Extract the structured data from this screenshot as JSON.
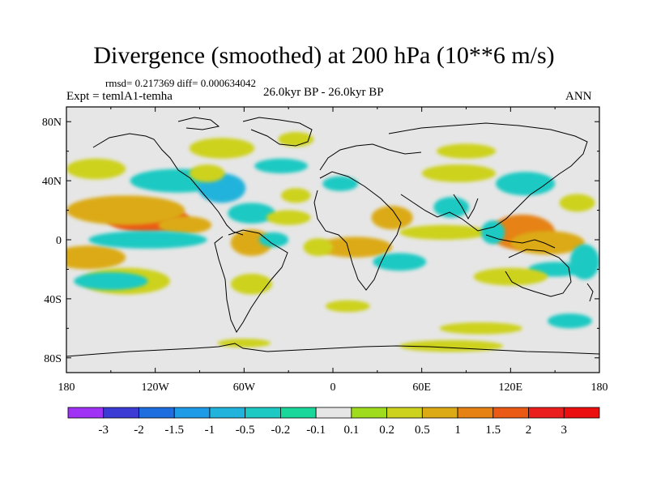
{
  "title": "Divergence (smoothed) at 200 hPa (10**6 m/s)",
  "stats_text": "rmsd= 0.217369 diff= 0.000634042",
  "left_label": "Expt = temlA1-temha",
  "center_label": "26.0kyr BP - 26.0kyr BP",
  "right_label": "ANN",
  "chart_data": {
    "type": "heatmap",
    "title": "Divergence (smoothed) at 200 hPa (10**6 m/s)",
    "xlabel": "",
    "ylabel": "",
    "xlim": [
      -180,
      180
    ],
    "ylim": [
      -90,
      90
    ],
    "x_ticks": [
      {
        "value": -180,
        "label": "180"
      },
      {
        "value": -120,
        "label": "120W"
      },
      {
        "value": -60,
        "label": "60W"
      },
      {
        "value": 0,
        "label": "0"
      },
      {
        "value": 60,
        "label": "60E"
      },
      {
        "value": 120,
        "label": "120E"
      },
      {
        "value": 180,
        "label": "180"
      }
    ],
    "y_ticks": [
      {
        "value": 80,
        "label": "80N"
      },
      {
        "value": 40,
        "label": "40N"
      },
      {
        "value": 0,
        "label": "0"
      },
      {
        "value": -40,
        "label": "40S"
      },
      {
        "value": -80,
        "label": "80S"
      }
    ],
    "colorbar": {
      "levels": [
        "-3",
        "-2",
        "-1.5",
        "-1",
        "-0.5",
        "-0.2",
        "-0.1",
        "0.1",
        "0.2",
        "0.5",
        "1",
        "1.5",
        "2",
        "3"
      ],
      "colors": [
        "#9f32f5",
        "#3c3cd5",
        "#1e6ee0",
        "#1e9be6",
        "#21b3dc",
        "#1ec9c3",
        "#19d79b",
        "#e6e6e6",
        "#a0dc1e",
        "#cdd21e",
        "#dcaa14",
        "#e68214",
        "#eb5a14",
        "#eb1e1e",
        "#eb0f0f"
      ]
    },
    "features": [
      {
        "lon": -125,
        "lat": 14,
        "rlon": 28,
        "rlat": 9,
        "value": 1.6
      },
      {
        "lon": -140,
        "lat": 20,
        "rlon": 40,
        "rlat": 10,
        "value": 0.6
      },
      {
        "lon": -100,
        "lat": 10,
        "rlon": 18,
        "rlat": 6,
        "value": 0.6
      },
      {
        "lon": -165,
        "lat": -12,
        "rlon": 25,
        "rlat": 8,
        "value": 0.7
      },
      {
        "lon": -140,
        "lat": -28,
        "rlon": 30,
        "rlat": 9,
        "value": 0.4
      },
      {
        "lon": -105,
        "lat": 40,
        "rlon": 32,
        "rlat": 8,
        "value": -0.5
      },
      {
        "lon": -75,
        "lat": 35,
        "rlon": 16,
        "rlat": 10,
        "value": -0.6
      },
      {
        "lon": -55,
        "lat": 18,
        "rlon": 16,
        "rlat": 7,
        "value": -0.4
      },
      {
        "lon": -125,
        "lat": 0,
        "rlon": 40,
        "rlat": 6,
        "value": -0.4
      },
      {
        "lon": -150,
        "lat": -28,
        "rlon": 25,
        "rlat": 6,
        "value": -0.3
      },
      {
        "lon": -160,
        "lat": 48,
        "rlon": 20,
        "rlat": 7,
        "value": 0.3
      },
      {
        "lon": -75,
        "lat": 62,
        "rlon": 22,
        "rlat": 7,
        "value": 0.3
      },
      {
        "lon": -85,
        "lat": 45,
        "rlon": 12,
        "rlat": 6,
        "value": 0.3
      },
      {
        "lon": -55,
        "lat": -2,
        "rlon": 14,
        "rlat": 9,
        "value": 0.5
      },
      {
        "lon": -55,
        "lat": -30,
        "rlon": 14,
        "rlat": 7,
        "value": 0.3
      },
      {
        "lon": -40,
        "lat": 0,
        "rlon": 10,
        "rlat": 5,
        "value": -0.3
      },
      {
        "lon": -30,
        "lat": 15,
        "rlon": 15,
        "rlat": 5,
        "value": 0.3
      },
      {
        "lon": -25,
        "lat": 68,
        "rlon": 12,
        "rlat": 5,
        "value": 0.4
      },
      {
        "lon": -35,
        "lat": 50,
        "rlon": 18,
        "rlat": 5,
        "value": -0.3
      },
      {
        "lon": 5,
        "lat": 38,
        "rlon": 12,
        "rlat": 5,
        "value": -0.3
      },
      {
        "lon": -25,
        "lat": 30,
        "rlon": 10,
        "rlat": 5,
        "value": 0.3
      },
      {
        "lon": 40,
        "lat": 15,
        "rlon": 14,
        "rlat": 8,
        "value": 0.6
      },
      {
        "lon": 15,
        "lat": -5,
        "rlon": 25,
        "rlat": 7,
        "value": 0.6
      },
      {
        "lon": -10,
        "lat": -5,
        "rlon": 10,
        "rlat": 6,
        "value": 0.4
      },
      {
        "lon": 45,
        "lat": -15,
        "rlon": 18,
        "rlat": 6,
        "value": -0.3
      },
      {
        "lon": 75,
        "lat": 5,
        "rlon": 30,
        "rlat": 5,
        "value": 0.3
      },
      {
        "lon": 80,
        "lat": 22,
        "rlon": 12,
        "rlat": 7,
        "value": -0.4
      },
      {
        "lon": 85,
        "lat": 45,
        "rlon": 25,
        "rlat": 6,
        "value": 0.3
      },
      {
        "lon": 90,
        "lat": 60,
        "rlon": 20,
        "rlat": 5,
        "value": 0.3
      },
      {
        "lon": 130,
        "lat": 38,
        "rlon": 20,
        "rlat": 8,
        "value": -0.4
      },
      {
        "lon": 128,
        "lat": 5,
        "rlon": 22,
        "rlat": 12,
        "value": 1.2
      },
      {
        "lon": 145,
        "lat": -2,
        "rlon": 25,
        "rlat": 8,
        "value": 0.6
      },
      {
        "lon": 108,
        "lat": 5,
        "rlon": 8,
        "rlat": 8,
        "value": -0.4
      },
      {
        "lon": 150,
        "lat": -20,
        "rlon": 18,
        "rlat": 5,
        "value": -0.4
      },
      {
        "lon": 120,
        "lat": -25,
        "rlon": 25,
        "rlat": 6,
        "value": 0.3
      },
      {
        "lon": 165,
        "lat": 25,
        "rlon": 12,
        "rlat": 6,
        "value": 0.3
      },
      {
        "lon": 170,
        "lat": -15,
        "rlon": 10,
        "rlat": 12,
        "value": -0.3
      },
      {
        "lon": 100,
        "lat": -60,
        "rlon": 28,
        "rlat": 4,
        "value": 0.3
      },
      {
        "lon": 80,
        "lat": -72,
        "rlon": 35,
        "rlat": 4,
        "value": 0.3
      },
      {
        "lon": -60,
        "lat": -70,
        "rlon": 18,
        "rlat": 3,
        "value": 0.3
      },
      {
        "lon": 10,
        "lat": -45,
        "rlon": 15,
        "rlat": 4,
        "value": 0.3
      },
      {
        "lon": 160,
        "lat": -55,
        "rlon": 15,
        "rlat": 5,
        "value": -0.3
      }
    ]
  }
}
